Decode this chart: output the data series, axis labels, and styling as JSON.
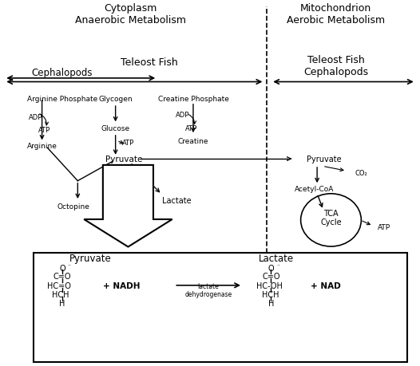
{
  "title": "",
  "bg_color": "#ffffff",
  "fig_width": 5.26,
  "fig_height": 4.6,
  "dpi": 100,
  "section_titles": {
    "cytoplasm": "Cytoplasm\nAnaerobic Metabolism",
    "mitochondrion": "Mitochondrion\nAerobic Metabolism"
  },
  "labels": {
    "cephalopods": "Cephalopods",
    "teleost_fish": "Teleost Fish",
    "teleost_fish_right": "Teleost Fish\nCephalopods",
    "arginine_phosphate": "Arginine Phosphate",
    "adp1": "ADP",
    "atp1": "ATP",
    "arginine": "Arginine",
    "glycogen": "Glycogen",
    "glucose": "Glucose",
    "atp2": "ATP",
    "pyruvate_left": "Pyruvate",
    "creatine_phosphate": "Creatine Phosphate",
    "adp2": "ADP",
    "atp3": "ATP",
    "creatine": "Creatine",
    "pyruvate_right": "Pyruvate",
    "co2": "CO₂",
    "acetyl_coa": "Acetyl-CoA",
    "tca": "TCA\nCycle",
    "atp4": "ATP",
    "lactate_top": "Lactate",
    "octopine": "Octopine",
    "pyruvate_box": "Pyruvate",
    "lactate_box": "Lactate",
    "nadh": "+ NADH",
    "arrow_label": "lactate\ndehydrogenase",
    "nad": "+ NAD"
  },
  "dashed_line_x": 0.635
}
